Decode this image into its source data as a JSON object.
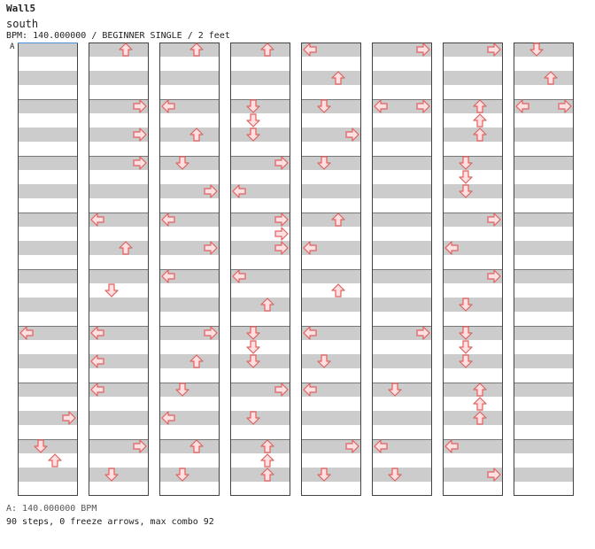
{
  "title": "Wall5",
  "subtitle": "south",
  "meta": "BPM: 140.000000 / BEGINNER SINGLE / 2 feet",
  "bpm_marker": "A",
  "footer_bpm": "A: 140.000000 BPM",
  "footer_stats": "90 steps, 0 freeze arrows, max combo 92",
  "colors": {
    "stripe": "#cccccc",
    "arrow_fill": "#ffe0e0",
    "arrow_stroke": "#e06060",
    "border": "#444444"
  },
  "chart_data": {
    "type": "step-chart",
    "columns": 8,
    "measures_per_column": 8,
    "rows_per_measure": 4,
    "lanes": [
      "left",
      "down",
      "up",
      "right"
    ],
    "notes": [
      [
        0,
        5,
        0,
        "left"
      ],
      [
        0,
        6,
        2,
        "right"
      ],
      [
        0,
        7,
        0,
        "down"
      ],
      [
        0,
        7,
        1,
        "up"
      ],
      [
        1,
        0,
        0,
        "up"
      ],
      [
        1,
        1,
        0,
        "right"
      ],
      [
        1,
        1,
        2,
        "right"
      ],
      [
        1,
        2,
        0,
        "right"
      ],
      [
        1,
        3,
        0,
        "left"
      ],
      [
        1,
        3,
        2,
        "up"
      ],
      [
        1,
        4,
        1,
        "down"
      ],
      [
        1,
        5,
        0,
        "left"
      ],
      [
        1,
        5,
        2,
        "left"
      ],
      [
        1,
        6,
        0,
        "left"
      ],
      [
        1,
        7,
        0,
        "right"
      ],
      [
        1,
        7,
        2,
        "down"
      ],
      [
        2,
        0,
        0,
        "up"
      ],
      [
        2,
        1,
        0,
        "left"
      ],
      [
        2,
        1,
        2,
        "up"
      ],
      [
        2,
        2,
        0,
        "down"
      ],
      [
        2,
        2,
        2,
        "right"
      ],
      [
        2,
        3,
        0,
        "left"
      ],
      [
        2,
        3,
        2,
        "right"
      ],
      [
        2,
        4,
        0,
        "left"
      ],
      [
        2,
        5,
        0,
        "right"
      ],
      [
        2,
        5,
        2,
        "up"
      ],
      [
        2,
        6,
        0,
        "down"
      ],
      [
        2,
        6,
        2,
        "left"
      ],
      [
        2,
        7,
        0,
        "up"
      ],
      [
        2,
        7,
        2,
        "down"
      ],
      [
        3,
        0,
        0,
        "up"
      ],
      [
        3,
        1,
        0,
        "down"
      ],
      [
        3,
        1,
        1,
        "down"
      ],
      [
        3,
        1,
        2,
        "down"
      ],
      [
        3,
        2,
        0,
        "right"
      ],
      [
        3,
        2,
        2,
        "left"
      ],
      [
        3,
        3,
        0,
        "right"
      ],
      [
        3,
        3,
        1,
        "right"
      ],
      [
        3,
        3,
        2,
        "right"
      ],
      [
        3,
        4,
        0,
        "left"
      ],
      [
        3,
        4,
        2,
        "up"
      ],
      [
        3,
        5,
        0,
        "down"
      ],
      [
        3,
        5,
        1,
        "down"
      ],
      [
        3,
        5,
        2,
        "down"
      ],
      [
        3,
        6,
        0,
        "right"
      ],
      [
        3,
        6,
        2,
        "down"
      ],
      [
        3,
        7,
        0,
        "up"
      ],
      [
        3,
        7,
        1,
        "up"
      ],
      [
        3,
        7,
        2,
        "up"
      ],
      [
        4,
        0,
        0,
        "left"
      ],
      [
        4,
        0,
        2,
        "up"
      ],
      [
        4,
        1,
        0,
        "down"
      ],
      [
        4,
        1,
        2,
        "right"
      ],
      [
        4,
        2,
        0,
        "down"
      ],
      [
        4,
        3,
        0,
        "up"
      ],
      [
        4,
        3,
        2,
        "left"
      ],
      [
        4,
        4,
        1,
        "up"
      ],
      [
        4,
        5,
        0,
        "left"
      ],
      [
        4,
        5,
        2,
        "down"
      ],
      [
        4,
        6,
        0,
        "left"
      ],
      [
        4,
        7,
        0,
        "right"
      ],
      [
        4,
        7,
        2,
        "down"
      ],
      [
        5,
        0,
        0,
        "right"
      ],
      [
        5,
        1,
        0,
        "left"
      ],
      [
        5,
        1,
        0,
        "right"
      ],
      [
        5,
        5,
        0,
        "right"
      ],
      [
        5,
        6,
        0,
        "down"
      ],
      [
        5,
        7,
        0,
        "left"
      ],
      [
        5,
        7,
        2,
        "down"
      ],
      [
        6,
        0,
        0,
        "right"
      ],
      [
        6,
        1,
        0,
        "up"
      ],
      [
        6,
        1,
        1,
        "up"
      ],
      [
        6,
        1,
        2,
        "up"
      ],
      [
        6,
        2,
        0,
        "down"
      ],
      [
        6,
        2,
        1,
        "down"
      ],
      [
        6,
        2,
        2,
        "down"
      ],
      [
        6,
        3,
        0,
        "right"
      ],
      [
        6,
        3,
        2,
        "left"
      ],
      [
        6,
        4,
        0,
        "right"
      ],
      [
        6,
        4,
        2,
        "down"
      ],
      [
        6,
        5,
        0,
        "down"
      ],
      [
        6,
        5,
        1,
        "down"
      ],
      [
        6,
        5,
        2,
        "down"
      ],
      [
        6,
        6,
        0,
        "up"
      ],
      [
        6,
        6,
        1,
        "up"
      ],
      [
        6,
        6,
        2,
        "up"
      ],
      [
        6,
        7,
        0,
        "left"
      ],
      [
        6,
        7,
        2,
        "right"
      ],
      [
        7,
        0,
        0,
        "down"
      ],
      [
        7,
        0,
        2,
        "up"
      ],
      [
        7,
        1,
        0,
        "left"
      ],
      [
        7,
        1,
        0,
        "right"
      ]
    ]
  }
}
